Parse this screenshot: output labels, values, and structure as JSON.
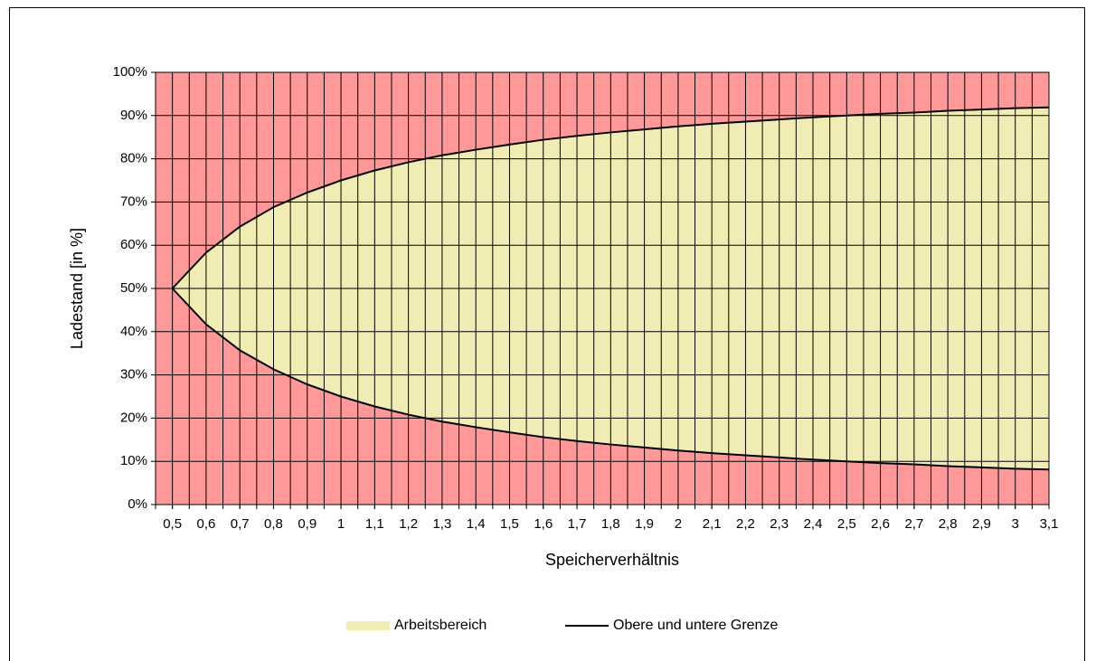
{
  "chart_data": {
    "type": "band",
    "x_label": "Speicherverhältnis",
    "y_label": "Ladestand [in %]",
    "x": [
      0.5,
      0.6,
      0.7,
      0.8,
      0.9,
      1,
      1.1,
      1.2,
      1.3,
      1.4,
      1.5,
      1.6,
      1.7,
      1.8,
      1.9,
      2,
      2.1,
      2.2,
      2.3,
      2.4,
      2.5,
      2.6,
      2.7,
      2.8,
      2.9,
      3,
      3.1
    ],
    "series": [
      {
        "name": "Arbeitsbereich",
        "color": "#f0ecb4",
        "upper": [
          50,
          58.3,
          64.3,
          68.8,
          72.2,
          75,
          77.3,
          79.2,
          80.8,
          82.1,
          83.3,
          84.4,
          85.3,
          86.1,
          86.8,
          87.5,
          88.1,
          88.6,
          89.1,
          89.6,
          90,
          90.4,
          90.7,
          91.1,
          91.4,
          91.7,
          91.9
        ],
        "lower": [
          50,
          41.7,
          35.7,
          31.3,
          27.8,
          25,
          22.7,
          20.8,
          19.2,
          17.9,
          16.7,
          15.6,
          14.7,
          13.9,
          13.2,
          12.5,
          11.9,
          11.4,
          10.9,
          10.4,
          10,
          9.6,
          9.3,
          8.9,
          8.6,
          8.3,
          8.1
        ]
      },
      {
        "name": "Obere und untere Grenze",
        "color": "#000000"
      }
    ],
    "plot_background": "#ff9999",
    "xlim": [
      0.45,
      3.1
    ],
    "grid_x_step": 0.05,
    "xticks": [
      {
        "value": 0.5,
        "label": "0,5"
      },
      {
        "value": 0.6,
        "label": "0,6"
      },
      {
        "value": 0.7,
        "label": "0,7"
      },
      {
        "value": 0.8,
        "label": "0,8"
      },
      {
        "value": 0.9,
        "label": "0,9"
      },
      1,
      {
        "value": 1.1,
        "label": "1,1"
      },
      {
        "value": 1.2,
        "label": "1,2"
      },
      {
        "value": 1.3,
        "label": "1,3"
      },
      {
        "value": 1.4,
        "label": "1,4"
      },
      {
        "value": 1.5,
        "label": "1,5"
      },
      {
        "value": 1.6,
        "label": "1,6"
      },
      {
        "value": 1.7,
        "label": "1,7"
      },
      {
        "value": 1.8,
        "label": "1,8"
      },
      {
        "value": 1.9,
        "label": "1,9"
      },
      2,
      {
        "value": 2.1,
        "label": "2,1"
      },
      {
        "value": 2.2,
        "label": "2,2"
      },
      {
        "value": 2.3,
        "label": "2,3"
      },
      {
        "value": 2.4,
        "label": "2,4"
      },
      {
        "value": 2.5,
        "label": "2,5"
      },
      {
        "value": 2.6,
        "label": "2,6"
      },
      {
        "value": 2.7,
        "label": "2,7"
      },
      {
        "value": 2.8,
        "label": "2,8"
      },
      {
        "value": 2.9,
        "label": "2,9"
      },
      3,
      {
        "value": 3.1,
        "label": "3,1"
      }
    ],
    "ylim": [
      0,
      100
    ],
    "yticks": [
      {
        "value": 0,
        "label": "0%"
      },
      {
        "value": 10,
        "label": "10%"
      },
      {
        "value": 20,
        "label": "20%"
      },
      {
        "value": 30,
        "label": "30%"
      },
      {
        "value": 40,
        "label": "40%"
      },
      {
        "value": 50,
        "label": "50%"
      },
      {
        "value": 60,
        "label": "60%"
      },
      {
        "value": 70,
        "label": "70%"
      },
      {
        "value": 80,
        "label": "80%"
      },
      {
        "value": 90,
        "label": "90%"
      },
      {
        "value": 100,
        "label": "100%"
      }
    ],
    "grid": true,
    "legend": "bottom"
  }
}
